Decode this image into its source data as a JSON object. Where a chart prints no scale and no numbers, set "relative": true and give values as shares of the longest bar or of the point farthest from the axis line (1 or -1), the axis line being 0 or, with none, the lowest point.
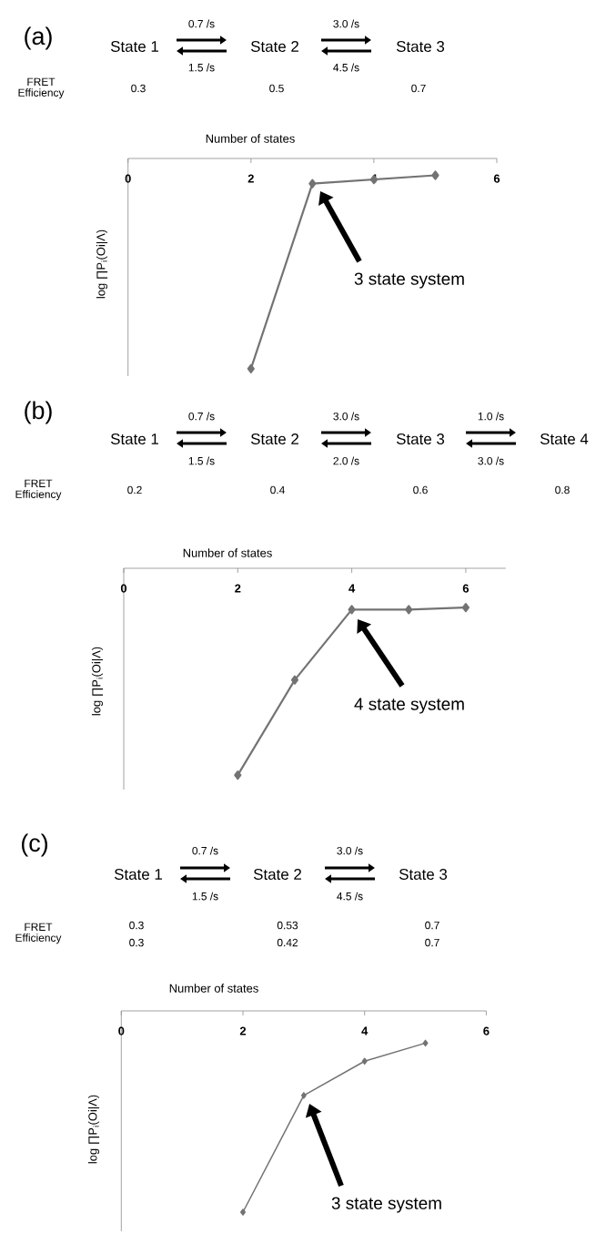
{
  "chart_data": [
    {
      "type": "line",
      "title": "(a)",
      "xlabel": "Number of states",
      "ylabel": "log ∏P$_{i}$(Oi|Λ)",
      "x": [
        2,
        3,
        4,
        5
      ],
      "values": [
        -1,
        -0.12,
        -0.1,
        -0.08
      ],
      "color": "#737373",
      "relative": true,
      "xlim": [
        0,
        6
      ],
      "xticks": [
        0,
        2,
        4,
        6
      ],
      "marker": "diamond",
      "line_style": "solid",
      "annotations": [
        "State 1",
        "State 2",
        "State 3",
        "0.7 /s",
        "3.0 /s",
        "1.5 /s",
        "4.5 /s",
        "FRET Efficiency",
        "0.3",
        "0.5",
        "0.7",
        "3 state system"
      ]
    },
    {
      "type": "line",
      "title": "(b)",
      "xlabel": "Number of states",
      "ylabel": "log ∏P$_{i}$(Oi|Λ)",
      "x": [
        2,
        3,
        4,
        5,
        6
      ],
      "values": [
        -1,
        -0.54,
        -0.2,
        -0.2,
        -0.19
      ],
      "color": "#737373",
      "relative": true,
      "xlim": [
        0,
        6.7
      ],
      "xticks": [
        0,
        2,
        4,
        6
      ],
      "marker": "diamond",
      "line_style": "solid",
      "annotations": [
        "State 1",
        "State 2",
        "State 3",
        "State 4",
        "0.7 /s",
        "3.0 /s",
        "1.0 /s",
        "1.5 /s",
        "2.0 /s",
        "3.0 /s",
        "FRET Efficiency",
        "0.2",
        "0.4",
        "0.6",
        "0.8",
        "4 state system"
      ]
    },
    {
      "type": "line",
      "title": "(c)",
      "xlabel": "Number of states",
      "ylabel": "log ∏P$_{i}$(Oi|Λ)",
      "x": [
        2,
        3,
        4,
        5
      ],
      "values": [
        -1,
        -0.42,
        -0.25,
        -0.16
      ],
      "color": "#737373",
      "relative": true,
      "xlim": [
        0,
        6
      ],
      "xticks": [
        0,
        2,
        4,
        6
      ],
      "marker": "diamond",
      "line_style": "solid",
      "annotations": [
        "State 1",
        "State 2",
        "State 3",
        "0.7 /s",
        "3.0 /s",
        "1.5 /s",
        "4.5 /s",
        "FRET Efficiency",
        "0.3",
        "0.53",
        "0.7",
        "0.3",
        "0.42",
        "0.7",
        "3 state system"
      ]
    }
  ]
}
